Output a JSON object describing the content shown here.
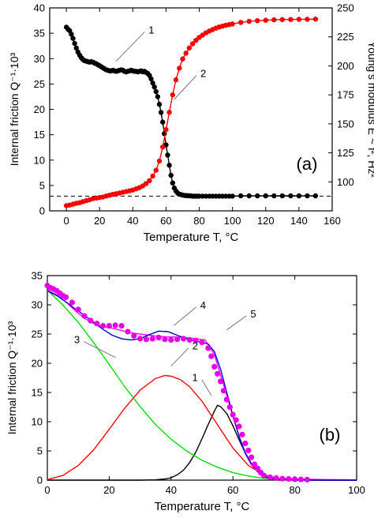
{
  "chart_data": [
    {
      "type": "line",
      "panel_label": "(a)",
      "xlabel": "Temperature T, °C",
      "ylabel": "Internal friction Q⁻¹·10³",
      "ylabel_right": "Young's modulus E ~ f², Hz²",
      "xlim": [
        -10,
        160
      ],
      "ylim": [
        0,
        40
      ],
      "ylim_right": [
        75,
        250
      ],
      "xticks": [
        0,
        20,
        40,
        60,
        80,
        100,
        120,
        140,
        160
      ],
      "yticks": [
        0,
        5,
        10,
        15,
        20,
        25,
        30,
        35,
        40
      ],
      "yticks_right": [
        75,
        100,
        125,
        150,
        175,
        200,
        225,
        250
      ],
      "right_tick_labels": [
        "",
        "100",
        "125",
        "150",
        "175",
        "200",
        "225",
        "250"
      ],
      "baseline_dashed_y": 2.9,
      "series": [
        {
          "name": "1",
          "axis": "left",
          "color": "#000000",
          "x": [
            0,
            1,
            2,
            3,
            4,
            5,
            6,
            7,
            8,
            9,
            10,
            11,
            12,
            13,
            14,
            15,
            16,
            17,
            18,
            19,
            20,
            21,
            22,
            23,
            24,
            25,
            26,
            27,
            28,
            29,
            30,
            31,
            32,
            33,
            34,
            35,
            36,
            37,
            38,
            39,
            40,
            41,
            42,
            43,
            44,
            45,
            46,
            47,
            48,
            49,
            50,
            51,
            52,
            53,
            54,
            55,
            56,
            57,
            58,
            59,
            60,
            61,
            62,
            63,
            64,
            65,
            66,
            67,
            68,
            69,
            70,
            71,
            72,
            73,
            74,
            75,
            76,
            77,
            78,
            79,
            80,
            82,
            84,
            86,
            88,
            90,
            92,
            94,
            96,
            98,
            100,
            105,
            110,
            115,
            120,
            125,
            130,
            135,
            140,
            145,
            150
          ],
          "y": [
            36.2,
            35.8,
            35.5,
            34.8,
            34.0,
            33.0,
            32.1,
            31.3,
            30.7,
            30.2,
            29.8,
            29.6,
            29.5,
            29.4,
            29.3,
            29.4,
            29.3,
            29.1,
            29.0,
            28.8,
            28.6,
            28.4,
            28.2,
            28.0,
            27.8,
            27.7,
            27.6,
            27.6,
            27.7,
            27.6,
            27.5,
            27.6,
            27.7,
            27.8,
            27.7,
            27.5,
            27.4,
            27.5,
            27.6,
            27.7,
            27.6,
            27.5,
            27.5,
            27.4,
            27.5,
            27.6,
            27.4,
            27.5,
            27.3,
            27.1,
            26.7,
            26.0,
            25.2,
            24.4,
            23.5,
            22.5,
            21.0,
            19.4,
            17.5,
            15.2,
            13.0,
            11.0,
            9.0,
            7.0,
            5.5,
            4.5,
            3.9,
            3.5,
            3.3,
            3.2,
            3.1,
            3.05,
            3.0,
            3.0,
            2.95,
            2.95,
            2.9,
            2.9,
            2.9,
            2.9,
            2.9,
            2.9,
            2.9,
            2.9,
            2.9,
            2.9,
            2.9,
            2.9,
            2.9,
            2.9,
            2.9,
            2.95,
            2.95,
            2.95,
            2.95,
            2.95,
            2.95,
            2.95,
            2.95,
            2.95,
            2.95
          ]
        },
        {
          "name": "2",
          "axis": "right",
          "color": "#ff0000",
          "x": [
            0,
            2,
            4,
            6,
            8,
            10,
            12,
            14,
            16,
            18,
            20,
            22,
            24,
            26,
            28,
            30,
            32,
            34,
            36,
            38,
            40,
            42,
            44,
            46,
            48,
            50,
            52,
            54,
            56,
            58,
            60,
            62,
            64,
            66,
            68,
            70,
            72,
            74,
            76,
            78,
            80,
            82,
            84,
            86,
            88,
            90,
            92,
            94,
            96,
            98,
            100,
            105,
            110,
            115,
            120,
            125,
            130,
            135,
            140,
            145,
            150
          ],
          "y": [
            79.5,
            80.0,
            80.8,
            81.5,
            82.0,
            83.0,
            83.8,
            84.5,
            85.5,
            86.0,
            86.5,
            87.0,
            87.8,
            88.5,
            89.2,
            89.8,
            90.3,
            91.0,
            91.6,
            92.3,
            93.0,
            94.0,
            95.0,
            96.5,
            98.5,
            101.0,
            105.0,
            110.0,
            118.0,
            130.0,
            145.0,
            160.0,
            175.0,
            188.0,
            198.0,
            206.0,
            211.0,
            215.5,
            219.0,
            222.0,
            224.5,
            226.5,
            228.5,
            230.0,
            231.3,
            232.5,
            233.5,
            234.3,
            235.0,
            235.6,
            236.2,
            237.5,
            238.4,
            239.0,
            239.4,
            239.7,
            239.9,
            240.0,
            240.1,
            240.2,
            240.3
          ]
        }
      ],
      "annotations": [
        {
          "text": "1",
          "x": 30,
          "y": 29.5
        },
        {
          "text": "2",
          "x": 65,
          "y": 22
        }
      ]
    },
    {
      "type": "line",
      "panel_label": "(b)",
      "xlabel": "Temperature T, °C",
      "ylabel": "Internal friction Q⁻¹·10³",
      "xlim": [
        0,
        100
      ],
      "ylim": [
        0,
        35
      ],
      "xticks": [
        0,
        20,
        40,
        60,
        80,
        100
      ],
      "yticks": [
        0,
        5,
        10,
        15,
        20,
        25,
        30,
        35
      ],
      "series": [
        {
          "name": "1",
          "color": "#000000",
          "x": [
            0,
            5,
            10,
            15,
            20,
            25,
            30,
            35,
            38,
            40,
            42,
            44,
            46,
            48,
            50,
            52,
            54,
            55,
            56,
            58,
            60,
            62,
            64,
            66,
            68,
            70,
            72,
            75,
            80,
            90,
            100
          ],
          "y": [
            0,
            0,
            0,
            0,
            0,
            0,
            0,
            0.05,
            0.2,
            0.4,
            0.9,
            1.7,
            3.0,
            4.8,
            7.1,
            9.5,
            11.8,
            12.8,
            12.6,
            11.4,
            9.3,
            6.9,
            4.6,
            2.7,
            1.4,
            0.6,
            0.25,
            0.05,
            0,
            0,
            0
          ]
        },
        {
          "name": "2",
          "color": "#ff0000",
          "x": [
            0,
            5,
            10,
            15,
            20,
            25,
            30,
            35,
            38,
            40,
            43,
            46,
            50,
            55,
            60,
            65,
            70,
            75,
            80,
            90,
            100
          ],
          "y": [
            0.1,
            0.8,
            2.5,
            5.2,
            8.7,
            12.3,
            15.4,
            17.4,
            17.9,
            17.8,
            17.2,
            16.0,
            13.5,
            9.5,
            5.5,
            2.5,
            0.9,
            0.25,
            0.05,
            0,
            0
          ]
        },
        {
          "name": "3",
          "color": "#00dd00",
          "x": [
            0,
            5,
            10,
            15,
            20,
            25,
            30,
            35,
            40,
            45,
            50,
            55,
            60,
            65,
            70,
            75,
            80
          ],
          "y": [
            32.5,
            30.0,
            27.0,
            23.5,
            19.8,
            16.0,
            12.6,
            9.5,
            7.0,
            5.0,
            3.4,
            2.2,
            1.3,
            0.7,
            0.3,
            0.1,
            0
          ]
        },
        {
          "name": "4",
          "color": "#ff00ff",
          "x": [
            0,
            3,
            6,
            9,
            12,
            15,
            18,
            21,
            24,
            27,
            30,
            33,
            36,
            39,
            42,
            45,
            48,
            51,
            54,
            56,
            58,
            60,
            62,
            64,
            66,
            68,
            70,
            72,
            75,
            80,
            85,
            90,
            100
          ],
          "y": [
            32.5,
            31.7,
            30.5,
            29.0,
            27.7,
            26.8,
            26.3,
            26.0,
            25.6,
            25.2,
            25.0,
            24.8,
            24.6,
            24.5,
            24.5,
            24.4,
            24.2,
            24.0,
            21.5,
            18.0,
            14.5,
            11.0,
            7.5,
            4.5,
            2.6,
            1.4,
            0.8,
            0.5,
            0.3,
            0.2,
            0.15,
            0.1,
            0.05
          ]
        },
        {
          "name": "5",
          "color": "#0000cc",
          "x": [
            0,
            3,
            6,
            9,
            12,
            15,
            18,
            21,
            24,
            27,
            30,
            33,
            36,
            39,
            42,
            45,
            48,
            50,
            52,
            54,
            56,
            58,
            60,
            62,
            64,
            66,
            68,
            70,
            72,
            75,
            80,
            85,
            90,
            100
          ],
          "y": [
            32.4,
            31.6,
            30.5,
            29.3,
            28.2,
            27.0,
            25.8,
            24.8,
            24.2,
            24.0,
            24.2,
            24.9,
            25.5,
            25.4,
            24.8,
            24.2,
            23.8,
            23.6,
            23.3,
            22.0,
            19.0,
            15.0,
            11.0,
            7.5,
            4.7,
            2.8,
            1.5,
            0.7,
            0.3,
            0.1,
            0.05,
            0.02,
            0,
            0
          ]
        },
        {
          "name": "",
          "type": "scatter",
          "color": "#e800e8",
          "x": [
            0,
            1,
            2,
            3,
            4,
            5,
            6,
            8,
            10,
            12,
            14,
            16,
            18,
            20,
            22,
            24,
            26,
            28,
            30,
            32,
            34,
            36,
            38,
            40,
            42,
            44,
            46,
            48,
            50,
            52,
            53,
            54,
            55,
            56,
            57,
            58,
            59,
            60,
            61,
            62,
            63,
            64,
            65,
            66,
            67,
            68,
            69,
            70,
            72,
            74,
            76,
            78,
            80,
            82,
            84
          ],
          "y": [
            33.3,
            32.9,
            32.7,
            32.4,
            32.0,
            31.6,
            31.3,
            30.4,
            29.2,
            28.1,
            27.3,
            26.8,
            26.4,
            26.4,
            26.5,
            26.4,
            25.4,
            24.7,
            24.2,
            24.1,
            24.2,
            24.4,
            24.1,
            24.0,
            24.1,
            24.2,
            24.0,
            23.9,
            23.6,
            22.6,
            21.2,
            19.4,
            18.2,
            16.9,
            15.3,
            13.8,
            12.5,
            11.2,
            10.3,
            9.2,
            7.8,
            6.3,
            5.1,
            3.9,
            2.7,
            2.0,
            1.3,
            0.8,
            0.5,
            0.35,
            0.25,
            0.2,
            0.15,
            0.12,
            0.1
          ]
        }
      ],
      "annotations": [
        {
          "text": "1",
          "x": 53,
          "y": 14.5
        },
        {
          "text": "2",
          "x": 40,
          "y": 19.5
        },
        {
          "text": "3",
          "x": 22,
          "y": 21
        },
        {
          "text": "4",
          "x": 41,
          "y": 26.5
        },
        {
          "text": "5",
          "x": 58,
          "y": 25.7
        }
      ]
    }
  ]
}
